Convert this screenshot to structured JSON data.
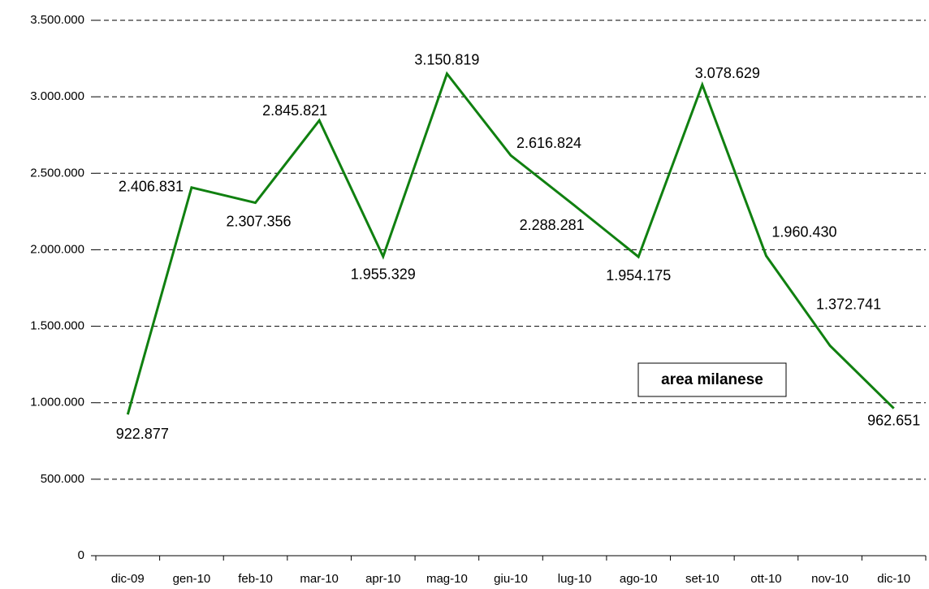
{
  "chart_data": {
    "type": "line",
    "annotation": "area milanese",
    "categories": [
      "dic-09",
      "gen-10",
      "feb-10",
      "mar-10",
      "apr-10",
      "mag-10",
      "giu-10",
      "lug-10",
      "ago-10",
      "set-10",
      "ott-10",
      "nov-10",
      "dic-10"
    ],
    "values": [
      922877,
      2406831,
      2307356,
      2845821,
      1955329,
      3150819,
      2616824,
      2288281,
      1954175,
      3078629,
      1960430,
      1372741,
      962651
    ],
    "value_labels": [
      "922.877",
      "2.406.831",
      "2.307.356",
      "2.845.821",
      "1.955.329",
      "3.150.819",
      "2.616.824",
      "2.288.281",
      "1.954.175",
      "3.078.629",
      "1.960.430",
      "1.372.741",
      "962.651"
    ],
    "color": "#108010",
    "ylim": [
      0,
      3500000
    ],
    "yticks": [
      0,
      {
        "value": 500000,
        "label": "500.000"
      },
      {
        "value": 1000000,
        "label": "1.000.000"
      },
      {
        "value": 1500000,
        "label": "1.500.000"
      },
      {
        "value": 2000000,
        "label": "2.000.000"
      },
      {
        "value": 2500000,
        "label": "2.500.000"
      },
      {
        "value": 3000000,
        "label": "3.000.000"
      },
      {
        "value": 3500000,
        "label": "3.500.000"
      }
    ],
    "grid": true
  }
}
